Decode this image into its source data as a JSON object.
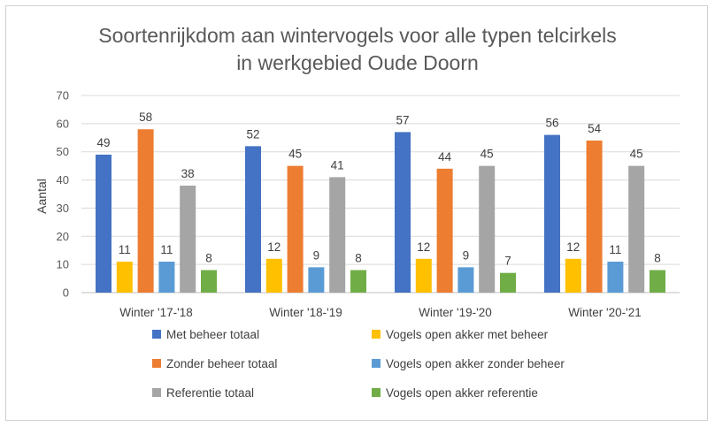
{
  "chart_data": {
    "type": "bar",
    "title_lines": [
      "Soortenrijkdom aan wintervogels voor alle typen telcirkels",
      "in werkgebied Oude Doorn"
    ],
    "ylabel": "Aantal",
    "xlabel": "",
    "ylim": [
      0,
      70
    ],
    "yticks": [
      0,
      10,
      20,
      30,
      40,
      50,
      60,
      70
    ],
    "grid": true,
    "legend_position": "bottom",
    "categories": [
      "Winter '17-'18",
      "Winter '18-'19",
      "Winter '19-'20",
      "Winter '20-'21"
    ],
    "series": [
      {
        "name": "Met beheer totaal",
        "color": "#4472C4",
        "values": [
          49,
          52,
          57,
          56
        ]
      },
      {
        "name": "Vogels open akker met beheer",
        "color": "#FFC000",
        "values": [
          11,
          12,
          12,
          12
        ]
      },
      {
        "name": "Zonder beheer totaal",
        "color": "#ED7D31",
        "values": [
          58,
          45,
          44,
          54
        ]
      },
      {
        "name": "Vogels open akker zonder beheer",
        "color": "#5B9BD5",
        "values": [
          11,
          9,
          9,
          11
        ]
      },
      {
        "name": "Referentie totaal",
        "color": "#A5A5A5",
        "values": [
          38,
          41,
          45,
          45
        ]
      },
      {
        "name": "Vogels open akker referentie",
        "color": "#70AD47",
        "values": [
          8,
          8,
          7,
          8
        ]
      }
    ]
  }
}
